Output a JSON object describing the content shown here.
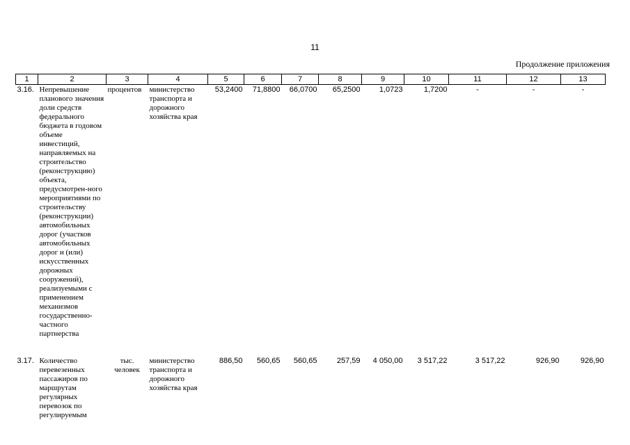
{
  "page_number": "11",
  "continuation_label": "Продолжение приложения",
  "headers": [
    "1",
    "2",
    "3",
    "4",
    "5",
    "6",
    "7",
    "8",
    "9",
    "10",
    "11",
    "12",
    "13"
  ],
  "rows": [
    {
      "idx": "3.16.",
      "name": "Непревышение планового значения доли средств федерального бюджета в годовом объеме инвестиций, направляемых на строительство (реконструкцию) объекта, предусмотрен-ного мероприятиями по строительству (реконструкции) автомобильных дорог (участков автомобильных дорог и (или) искусственных дорожных сооружений), реализуемыми с применением механизмов государственно-частного партнерства",
      "unit": "процентов",
      "responsible": "министерство транспорта и дорожного хозяйства края",
      "c5": "53,2400",
      "c6": "71,8800",
      "c7": "66,0700",
      "c8": "65,2500",
      "c9": "1,0723",
      "c10": "1,7200",
      "c11": "-",
      "c12": "-",
      "c13": "-"
    },
    {
      "idx": "3.17.",
      "name": "Количество перевезенных пассажиров по маршрутам регулярных перевозок по регулируемым",
      "unit": "тыс. человек",
      "responsible": "министерство транспорта и дорожного хозяйства края",
      "c5": "886,50",
      "c6": "560,65",
      "c7": "560,65",
      "c8": "257,59",
      "c9": "4 050,00",
      "c10": "3 517,22",
      "c11": "3 517,22",
      "c12": "926,90",
      "c13": "926,90"
    }
  ]
}
